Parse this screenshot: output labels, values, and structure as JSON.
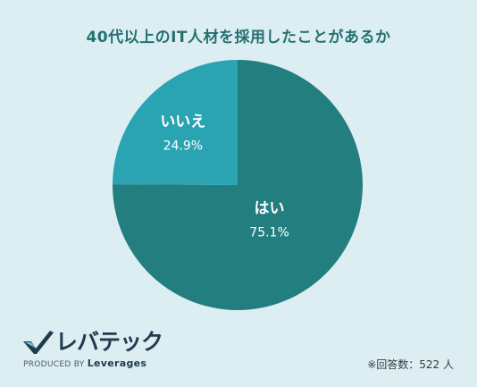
{
  "header": {
    "title": "40代以上のIT人材を採用したことがあるか"
  },
  "chart_data": {
    "type": "pie",
    "title": "40代以上のIT人材を採用したことがあるか",
    "slices": [
      {
        "label": "はい",
        "value": 75.1,
        "value_label": "75.1%",
        "color": "#237e80"
      },
      {
        "label": "いいえ",
        "value": 24.9,
        "value_label": "24.9%",
        "color": "#2aa4b3"
      }
    ],
    "start_angle": "12 o'clock",
    "direction": "clockwise"
  },
  "footer": {
    "logo_text": "レバテック",
    "byline_prefix": "PRODUCED BY",
    "byline_brand": "Leverages",
    "respondents_note": "※回答数：522 人"
  }
}
